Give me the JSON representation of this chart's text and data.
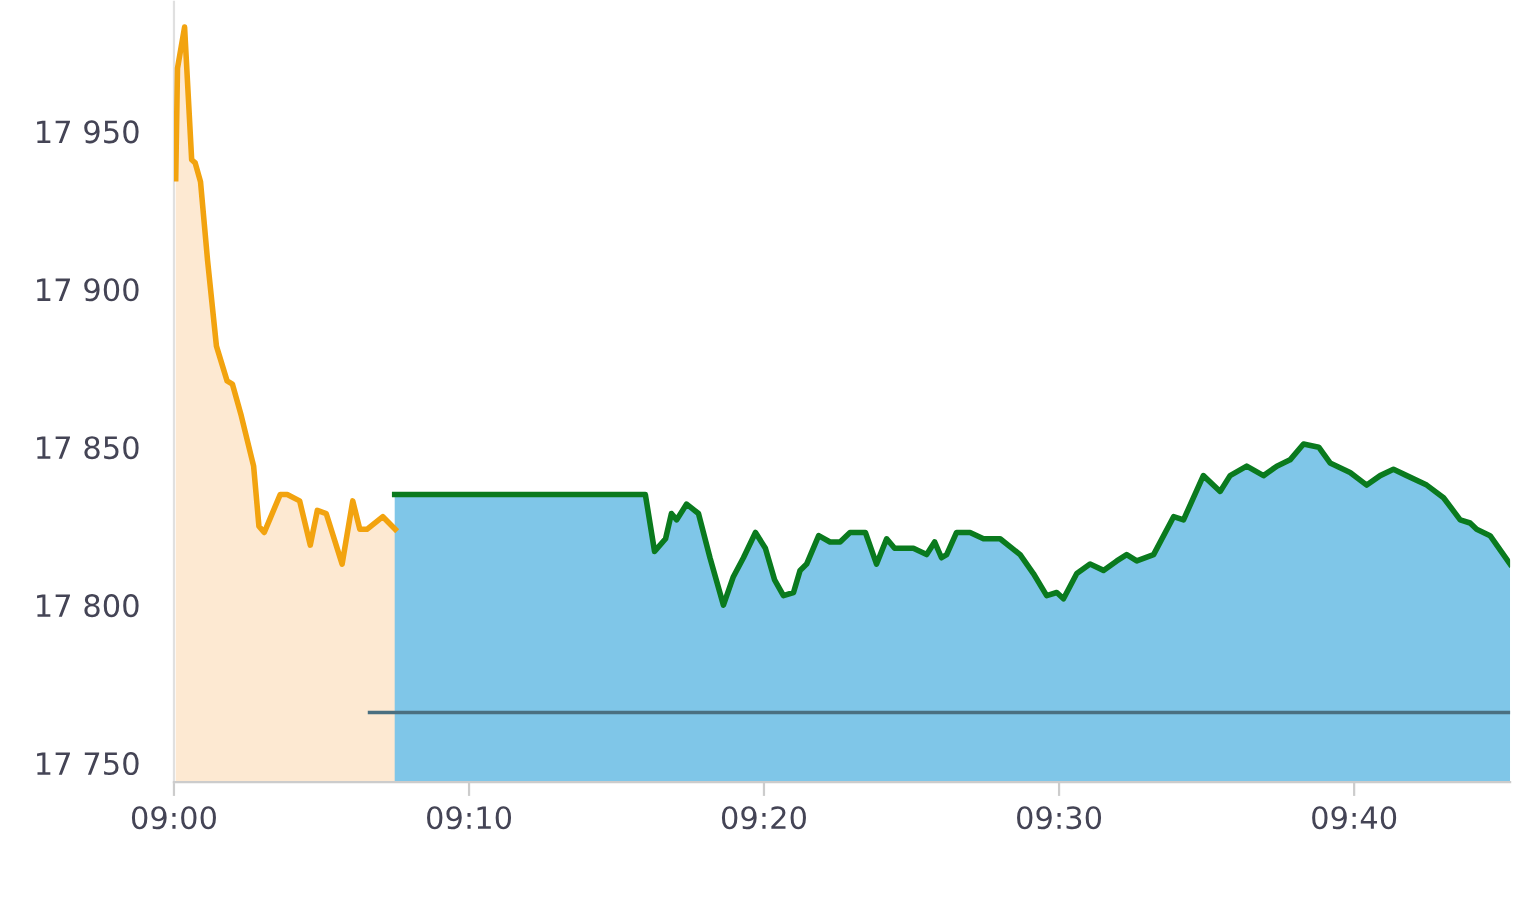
{
  "chart_data": {
    "type": "area",
    "xlim": [
      9.0,
      9.7548
    ],
    "ylim": [
      17744,
      17991
    ],
    "xticks": [
      {
        "value": 9.0,
        "label": "09:00"
      },
      {
        "value": 9.1667,
        "label": "09:10"
      },
      {
        "value": 9.3333,
        "label": "09:20"
      },
      {
        "value": 9.5,
        "label": "09:30"
      },
      {
        "value": 9.6667,
        "label": "09:40"
      }
    ],
    "yticks": [
      {
        "value": 17750,
        "label": "17 750"
      },
      {
        "value": 17800,
        "label": "17 800"
      },
      {
        "value": 17850,
        "label": "17 850"
      },
      {
        "value": 17900,
        "label": "17 900"
      },
      {
        "value": 17950,
        "label": "17 950"
      }
    ],
    "grid": false,
    "legend": false,
    "marker": "none",
    "line_style": "solid",
    "ref_lines": [
      {
        "axis": "y",
        "value": 17766,
        "color": "#4a6f80"
      }
    ],
    "series": [
      {
        "color": "#f2a30f",
        "x": [
          9.001,
          9.002,
          9.006,
          9.01,
          9.012,
          9.015,
          9.019,
          9.024,
          9.03,
          9.033,
          9.038,
          9.045,
          9.048,
          9.051,
          9.054,
          9.06,
          9.064,
          9.071,
          9.077,
          9.081,
          9.086,
          9.095,
          9.101,
          9.105,
          9.109,
          9.118,
          9.125
        ],
        "values": [
          17935,
          17970,
          17983,
          17941,
          17940,
          17934,
          17909,
          17882,
          17871,
          17870,
          17860,
          17844,
          17825,
          17823,
          17827,
          17835,
          17835,
          17833,
          17819,
          17830,
          17829,
          17813,
          17833,
          17824,
          17824,
          17828,
          17824
        ]
      },
      {
        "color": "#0a7a1e",
        "x": [
          9.1247,
          9.2663,
          9.2715,
          9.2777,
          9.281,
          9.284,
          9.2896,
          9.2963,
          9.3028,
          9.3104,
          9.316,
          9.3217,
          9.3285,
          9.3341,
          9.3393,
          9.3443,
          9.35,
          9.3537,
          9.3574,
          9.3642,
          9.3706,
          9.3763,
          9.3819,
          9.3906,
          9.3969,
          9.4026,
          9.4071,
          9.4177,
          9.4252,
          9.4297,
          9.4336,
          9.4365,
          9.4421,
          9.4497,
          9.4573,
          9.4667,
          9.478,
          9.4855,
          9.493,
          9.4987,
          9.5025,
          9.51,
          9.5175,
          9.5251,
          9.5326,
          9.5382,
          9.5439,
          9.5534,
          9.5647,
          9.5703,
          9.5815,
          9.591,
          9.5966,
          9.606,
          9.6155,
          9.623,
          9.6305,
          9.6381,
          9.6467,
          9.6531,
          9.6644,
          9.6738,
          9.6814,
          9.6889,
          9.6964,
          9.7077,
          9.7172,
          9.7266,
          9.7322,
          9.7359,
          9.7435,
          9.7548
        ],
        "values": [
          17835,
          17835,
          17817,
          17821,
          17829,
          17827,
          17832,
          17829,
          17815,
          17800,
          17809,
          17815,
          17823,
          17818,
          17808,
          17803,
          17804,
          17811,
          17813,
          17822,
          17820,
          17820,
          17823,
          17823,
          17813,
          17821,
          17818,
          17818,
          17816,
          17820,
          17815,
          17816,
          17823,
          17823,
          17821,
          17821,
          17816,
          17810,
          17803,
          17804,
          17802,
          17810,
          17813,
          17811,
          17814,
          17816,
          17814,
          17816,
          17828,
          17827,
          17841,
          17836,
          17841,
          17844,
          17841,
          17844,
          17846,
          17851,
          17850,
          17845,
          17842,
          17838,
          17841,
          17843,
          17841,
          17838,
          17834,
          17827,
          17826,
          17824,
          17822,
          17813
        ]
      }
    ]
  }
}
